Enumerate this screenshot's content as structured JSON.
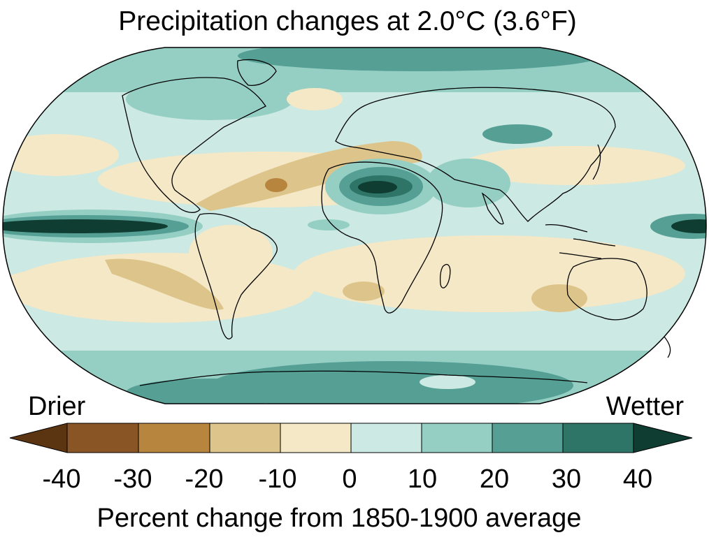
{
  "title": "Precipitation changes at 2.0°C (3.6°F)",
  "labels": {
    "drier": "Drier",
    "wetter": "Wetter"
  },
  "colorbar": {
    "ticks": [
      "-40",
      "-30",
      "-20",
      "-10",
      "0",
      "10",
      "20",
      "30",
      "40"
    ],
    "caption": "Percent change from 1850-1900 average",
    "bins": [
      {
        "range": "< -40",
        "color": "#5b3412"
      },
      {
        "range": "-40 to -30",
        "color": "#8a5524"
      },
      {
        "range": "-30 to -20",
        "color": "#b8853f"
      },
      {
        "range": "-20 to -10",
        "color": "#ddc48a"
      },
      {
        "range": "-10 to 0",
        "color": "#f5e8c6"
      },
      {
        "range": "0 to 10",
        "color": "#cde9e3"
      },
      {
        "range": "10 to 20",
        "color": "#95cfc4"
      },
      {
        "range": "20 to 30",
        "color": "#559f95"
      },
      {
        "range": "30 to 40",
        "color": "#2e7567"
      },
      {
        "range": "> 40",
        "color": "#0f3d32"
      }
    ]
  },
  "map": {
    "projection": "robinson",
    "coastlines": true
  }
}
